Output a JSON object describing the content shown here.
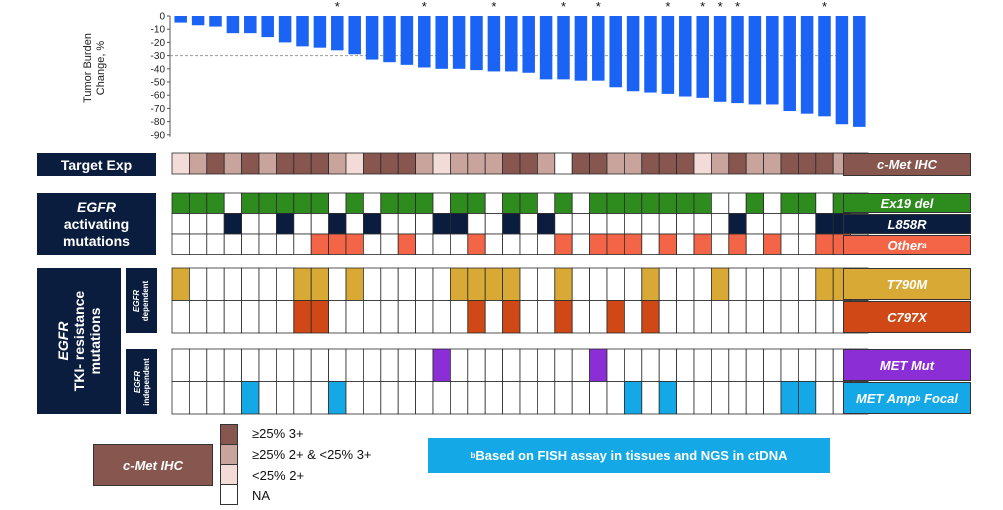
{
  "chart_data": {
    "type": "bar",
    "ylabel": "Tumor Burden Change, %",
    "ylim": [
      -90,
      0
    ],
    "yticks": [
      "0",
      "-10",
      "-20",
      "-30",
      "-40",
      "-50",
      "-60",
      "-70",
      "-80",
      "-90"
    ],
    "reference_line": -30,
    "bar_color": "#1b63f5",
    "values": [
      -5,
      -7,
      -8,
      -13,
      -13,
      -16,
      -20,
      -23,
      -24,
      -26,
      -29,
      -33,
      -35,
      -37,
      -39,
      -40,
      -40,
      -41,
      -42,
      -42,
      -43,
      -48,
      -48,
      -49,
      -49,
      -54,
      -57,
      -58,
      -59,
      -61,
      -62,
      -65,
      -66,
      -67,
      -67,
      -72,
      -74,
      -76,
      -82,
      -84
    ],
    "asterisk_marker": "*",
    "asterisks": [
      9,
      14,
      18,
      22,
      24,
      28,
      30,
      31,
      32,
      37
    ]
  },
  "colors": {
    "navy": "#0b1d3f",
    "cmet": [
      "#87564f",
      "#c9a49d",
      "#f3dcd8",
      "#ffffff"
    ],
    "ex19": "#2e8b1e",
    "l858r": "#0b1d3f",
    "other": "#f46446",
    "t790m": "#d9a935",
    "c797x": "#cf4815",
    "metmut": "#8b2ed6",
    "metamp": "#14a9e6"
  },
  "rows": {
    "target_exp": [
      2,
      1,
      0,
      1,
      0,
      1,
      0,
      0,
      0,
      1,
      2,
      0,
      0,
      0,
      1,
      2,
      1,
      1,
      1,
      0,
      0,
      1,
      3,
      0,
      0,
      1,
      1,
      0,
      0,
      0,
      2,
      1,
      0,
      1,
      1,
      0,
      0,
      0,
      1,
      1
    ],
    "ex19": [
      1,
      1,
      1,
      0,
      1,
      1,
      1,
      1,
      1,
      0,
      1,
      0,
      1,
      1,
      1,
      0,
      1,
      1,
      0,
      1,
      1,
      0,
      1,
      0,
      1,
      1,
      1,
      1,
      1,
      1,
      1,
      0,
      0,
      1,
      0,
      1,
      1,
      0,
      1,
      1
    ],
    "l858r": [
      0,
      0,
      0,
      1,
      0,
      0,
      1,
      0,
      0,
      1,
      0,
      1,
      0,
      0,
      0,
      1,
      1,
      0,
      0,
      1,
      0,
      1,
      0,
      0,
      0,
      0,
      0,
      0,
      0,
      0,
      0,
      0,
      1,
      0,
      0,
      0,
      0,
      1,
      1,
      0
    ],
    "other": [
      0,
      0,
      0,
      0,
      0,
      0,
      0,
      0,
      1,
      1,
      1,
      0,
      0,
      1,
      0,
      0,
      0,
      1,
      0,
      0,
      0,
      0,
      1,
      0,
      1,
      1,
      1,
      0,
      1,
      0,
      1,
      0,
      1,
      0,
      1,
      0,
      0,
      1,
      1,
      0
    ],
    "t790m": [
      1,
      0,
      0,
      0,
      0,
      0,
      0,
      1,
      1,
      0,
      1,
      0,
      0,
      0,
      0,
      0,
      1,
      1,
      1,
      1,
      0,
      0,
      1,
      0,
      0,
      0,
      0,
      1,
      0,
      0,
      0,
      1,
      0,
      0,
      0,
      0,
      0,
      1,
      1,
      0
    ],
    "c797x": [
      0,
      0,
      0,
      0,
      0,
      0,
      0,
      1,
      1,
      0,
      0,
      0,
      0,
      0,
      0,
      0,
      0,
      1,
      0,
      1,
      0,
      0,
      1,
      0,
      0,
      1,
      0,
      1,
      0,
      0,
      0,
      0,
      0,
      0,
      0,
      0,
      0,
      0,
      0,
      0
    ],
    "metmut": [
      0,
      0,
      0,
      0,
      0,
      0,
      0,
      0,
      0,
      0,
      0,
      0,
      0,
      0,
      0,
      1,
      0,
      0,
      0,
      0,
      0,
      0,
      0,
      0,
      1,
      0,
      0,
      0,
      0,
      0,
      0,
      0,
      0,
      0,
      0,
      0,
      0,
      0,
      0,
      0
    ],
    "metamp": [
      0,
      0,
      0,
      0,
      1,
      0,
      0,
      0,
      0,
      1,
      0,
      0,
      0,
      0,
      0,
      0,
      0,
      0,
      0,
      0,
      0,
      0,
      0,
      0,
      0,
      0,
      1,
      0,
      1,
      0,
      0,
      0,
      0,
      0,
      0,
      1,
      1,
      0,
      0,
      0
    ]
  },
  "labels": {
    "target_exp": "Target Exp",
    "egfr": "EGFR",
    "activating": "activating",
    "mutations": "mutations",
    "tki_resistance": "TKI- resistance",
    "resistance_mutations": "mutations",
    "egfr_dependent": "dependent",
    "egfr_independent": "independent",
    "cmet_ihc": "c-Met IHC",
    "ex19_del": "Ex19 del",
    "l858r": "L858R",
    "other": "Other",
    "other_sup": "a",
    "t790m": "T790M",
    "c797x": "C797X",
    "met_mut": "MET Mut",
    "met_amp": "MET Amp",
    "met_amp_sup": "b",
    "met_amp_suffix": " Focal"
  },
  "legend": {
    "title": "c-Met IHC",
    "items": [
      "≥25% 3+",
      "≥25% 2+ & <25% 3+",
      "<25% 2+",
      "NA"
    ]
  },
  "footnote": {
    "sup": "b",
    "text": "Based on FISH assay in tissues and NGS in ctDNA"
  }
}
